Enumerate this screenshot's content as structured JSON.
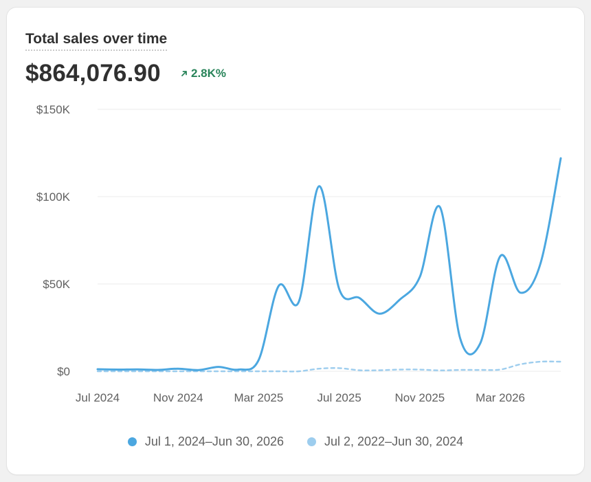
{
  "card": {
    "title": "Total sales over time",
    "total_value": "$864,076.90",
    "change": "2.8K%",
    "change_icon": "arrow-up-right-icon"
  },
  "colors": {
    "current": "#4ba7e0",
    "previous": "#9dcdee",
    "positive": "#29845a",
    "grid": "#ebebeb"
  },
  "chart_data": {
    "type": "line",
    "title": "Total sales over time",
    "ylim": [
      0,
      150000
    ],
    "y_ticks": [
      0,
      50000,
      100000,
      150000
    ],
    "y_tick_labels": [
      "$0",
      "$50K",
      "$100K",
      "$150K"
    ],
    "x_ticks": [
      "2024-07",
      "2024-11",
      "2025-03",
      "2025-07",
      "2025-11",
      "2026-03"
    ],
    "x_tick_labels": [
      "Jul 2024",
      "Nov 2024",
      "Mar 2025",
      "Jul 2025",
      "Nov 2025",
      "Mar 2026"
    ],
    "x_range": [
      "2024-07",
      "2026-06"
    ],
    "grid": true,
    "legend_position": "bottom-center",
    "series": [
      {
        "name": "Jul 1, 2024–Jun 30, 2026",
        "style": "solid",
        "x": [
          "2024-07",
          "2024-08",
          "2024-09",
          "2024-10",
          "2024-11",
          "2024-12",
          "2025-01",
          "2025-02",
          "2025-03",
          "2025-04",
          "2025-05",
          "2025-06",
          "2025-07",
          "2025-08",
          "2025-09",
          "2025-10",
          "2025-11",
          "2025-12",
          "2026-01",
          "2026-02",
          "2026-03",
          "2026-04",
          "2026-05",
          "2026-06"
        ],
        "values": [
          1200,
          1000,
          1100,
          800,
          1500,
          700,
          2500,
          1000,
          6500,
          49000,
          40000,
          106000,
          47000,
          42000,
          33000,
          41000,
          54000,
          94000,
          19000,
          16000,
          66000,
          45000,
          62000,
          122000
        ]
      },
      {
        "name": "Jul 2, 2022–Jun 30, 2024",
        "style": "dashed",
        "x": [
          "2024-07",
          "2024-08",
          "2024-09",
          "2024-10",
          "2024-11",
          "2024-12",
          "2025-01",
          "2025-02",
          "2025-03",
          "2025-04",
          "2025-05",
          "2025-06",
          "2025-07",
          "2025-08",
          "2025-09",
          "2025-10",
          "2025-11",
          "2025-12",
          "2026-01",
          "2026-02",
          "2026-03",
          "2026-04",
          "2026-05",
          "2026-06"
        ],
        "values": [
          0,
          0,
          0,
          0,
          0,
          0,
          0,
          0,
          0,
          0,
          0,
          1500,
          1800,
          600,
          600,
          1000,
          1000,
          500,
          800,
          800,
          1000,
          4000,
          5500,
          5500
        ]
      }
    ]
  }
}
